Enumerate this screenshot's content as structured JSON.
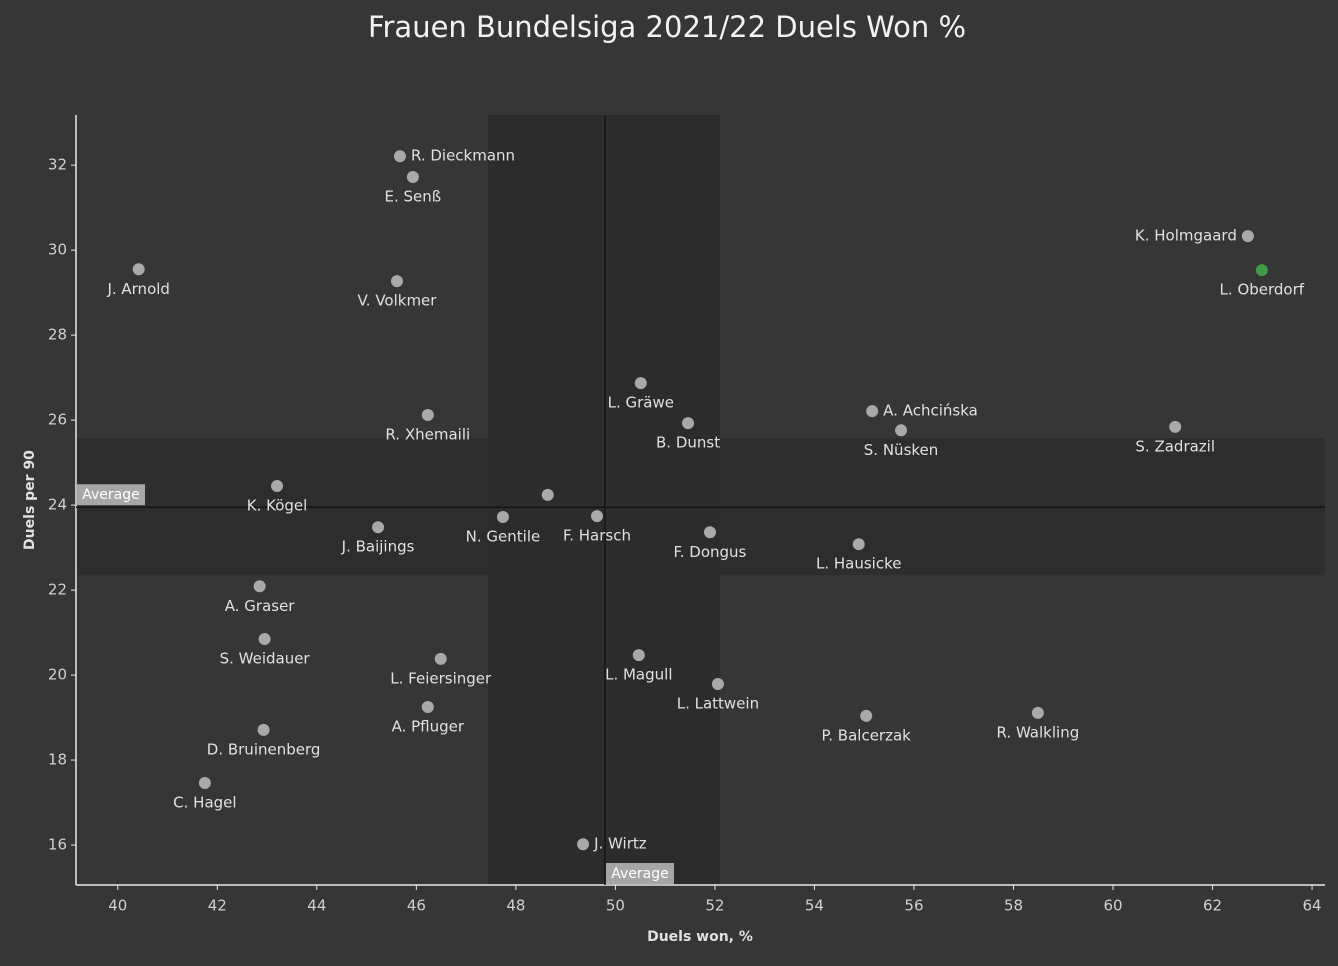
{
  "chart_data": {
    "type": "scatter",
    "title": "Frauen Bundelsiga 2021/22 Duels Won %",
    "xlabel": "Duels won, %",
    "ylabel": "Duels per 90",
    "labels": [
      "R. Dieckmann",
      "E. Senß",
      "J. Arnold",
      "V. Volkmer",
      "K. Holmgaard",
      "L. Oberdorf",
      "L. Gräwe",
      "R. Xhemaili",
      "B. Dunst",
      "A. Achcińska",
      "S. Nüsken",
      "S. Zadrazil",
      "K. Kögel",
      null,
      "J. Baijings",
      "N. Gentile",
      "F. Harsch",
      "F. Dongus",
      "L. Hausicke",
      "A. Graser",
      "S. Weidauer",
      "L. Feiersinger",
      "L. Magull",
      "L. Lattwein",
      "A. Pfluger",
      "D. Bruinenberg",
      "P. Balcerzak",
      "R. Walkling",
      "C. Hagel",
      "J. Wirtz"
    ],
    "x": [
      45.67,
      45.93,
      40.42,
      45.61,
      62.71,
      62.99,
      50.51,
      46.23,
      51.46,
      55.16,
      55.74,
      61.25,
      43.2,
      48.64,
      45.23,
      47.74,
      49.63,
      51.9,
      54.89,
      42.85,
      42.95,
      46.49,
      50.47,
      52.06,
      46.23,
      42.93,
      55.04,
      58.49,
      41.75,
      49.35
    ],
    "y": [
      32.21,
      31.72,
      29.55,
      29.27,
      30.33,
      29.53,
      26.87,
      26.12,
      25.93,
      26.21,
      25.76,
      25.84,
      24.45,
      24.24,
      23.48,
      23.72,
      23.74,
      23.36,
      23.08,
      22.09,
      20.85,
      20.38,
      20.47,
      19.79,
      19.25,
      18.71,
      19.04,
      19.11,
      17.46,
      16.02
    ],
    "colors": [
      "#a9a9a9",
      "#a9a9a9",
      "#a9a9a9",
      "#a9a9a9",
      "#a9a9a9",
      "#3f9c46",
      "#a9a9a9",
      "#a9a9a9",
      "#a9a9a9",
      "#a9a9a9",
      "#a9a9a9",
      "#a9a9a9",
      "#a9a9a9",
      "#a9a9a9",
      "#a9a9a9",
      "#a9a9a9",
      "#a9a9a9",
      "#a9a9a9",
      "#a9a9a9",
      "#a9a9a9",
      "#a9a9a9",
      "#a9a9a9",
      "#a9a9a9",
      "#a9a9a9",
      "#a9a9a9",
      "#a9a9a9",
      "#a9a9a9",
      "#a9a9a9",
      "#a9a9a9",
      "#a9a9a9"
    ],
    "xlim": [
      39.16,
      64.26
    ],
    "ylim": [
      15.06,
      33.18
    ],
    "xticks": [
      40,
      42,
      44,
      46,
      48,
      50,
      52,
      54,
      56,
      58,
      60,
      62,
      64
    ],
    "yticks": [
      16,
      18,
      20,
      22,
      24,
      26,
      28,
      30,
      32
    ],
    "x_band": [
      47.44,
      52.1
    ],
    "y_band": [
      22.35,
      25.58
    ],
    "reference_lines": [
      {
        "axis": "x",
        "value": 49.79,
        "label": "Average"
      },
      {
        "axis": "y",
        "value": 23.95,
        "label": "Average"
      }
    ]
  }
}
